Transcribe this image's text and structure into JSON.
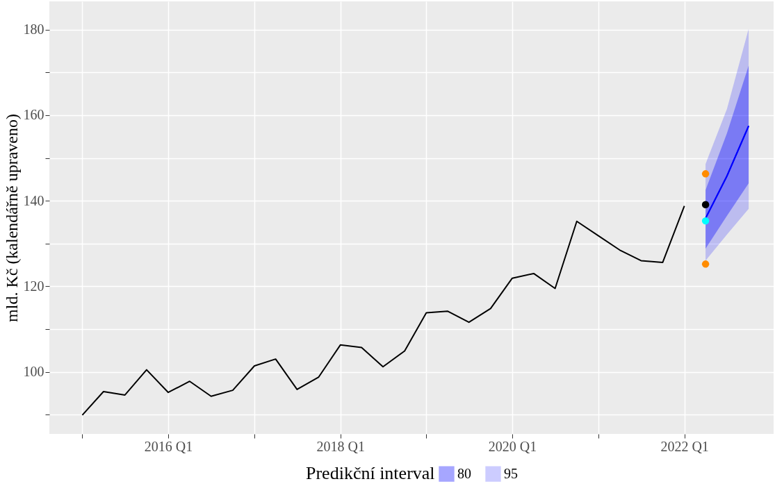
{
  "chart_data": {
    "type": "line",
    "ylabel": "mld. Kč (kalendářně upraveno)",
    "legend_title": "Predikční interval",
    "xlim": [
      "2014-08-14",
      "2023-01-15"
    ],
    "ylim": [
      85.5,
      186.6
    ],
    "xticks": [
      {
        "value": "2015-01",
        "label": null
      },
      {
        "value": "2016-01",
        "label": "2016 Q1"
      },
      {
        "value": "2017-01",
        "label": null
      },
      {
        "value": "2018-01",
        "label": "2018 Q1"
      },
      {
        "value": "2019-01",
        "label": null
      },
      {
        "value": "2020-01",
        "label": "2020 Q1"
      },
      {
        "value": "2021-01",
        "label": null
      },
      {
        "value": "2022-01",
        "label": "2022 Q1"
      }
    ],
    "yticks": [
      {
        "value": 90,
        "label": null
      },
      100,
      {
        "value": 110,
        "label": null
      },
      120,
      {
        "value": 130,
        "label": null
      },
      140,
      {
        "value": 150,
        "label": null
      },
      160,
      {
        "value": 170,
        "label": null
      },
      180
    ],
    "grid": true,
    "legend": "bottom",
    "marker": "none",
    "line_style": "solid",
    "series": [
      {
        "color": "#000000",
        "x": [
          "2015-01",
          "2015-04",
          "2015-07",
          "2015-10",
          "2016-01",
          "2016-04",
          "2016-07",
          "2016-10",
          "2017-01",
          "2017-04",
          "2017-07",
          "2017-10",
          "2018-01",
          "2018-04",
          "2018-07",
          "2018-10",
          "2019-01",
          "2019-04",
          "2019-07",
          "2019-10",
          "2020-01",
          "2020-04",
          "2020-07",
          "2020-10",
          "2021-01",
          "2021-04",
          "2021-07",
          "2021-10",
          "2022-01"
        ],
        "values": [
          89.9,
          95.4,
          94.6,
          100.5,
          95.2,
          97.8,
          94.3,
          95.7,
          101.4,
          103.0,
          95.9,
          98.8,
          106.3,
          105.7,
          101.2,
          104.9,
          113.8,
          114.2,
          111.6,
          114.8,
          121.9,
          123.0,
          119.5,
          135.2,
          131.8,
          128.5,
          126.0,
          125.6,
          138.8
        ]
      },
      {
        "name": "80",
        "color": "#0000ff",
        "x": [
          "2022-04",
          "2022-07",
          "2022-10"
        ],
        "values": [
          135.9,
          145.8,
          157.5
        ],
        "lower": [
          128.8,
          136.5,
          144.1
        ],
        "upper": [
          142.5,
          155.8,
          171.6
        ]
      },
      {
        "name": "95",
        "color": "#0000ff",
        "x": [
          "2022-04",
          "2022-07",
          "2022-10"
        ],
        "values": [
          135.9,
          145.8,
          157.5
        ],
        "lower": [
          126.0,
          132.1,
          138.1
        ],
        "upper": [
          148.6,
          161.5,
          180.2
        ]
      },
      {
        "type": "scatter",
        "marker": "circle",
        "colors": [
          "#ff8c00",
          "#000000",
          "#00ffff",
          "#ff8c00"
        ],
        "x": [
          "2022-04",
          "2022-04",
          "2022-04",
          "2022-04"
        ],
        "values": [
          146.3,
          139.1,
          135.3,
          125.2
        ]
      }
    ]
  }
}
